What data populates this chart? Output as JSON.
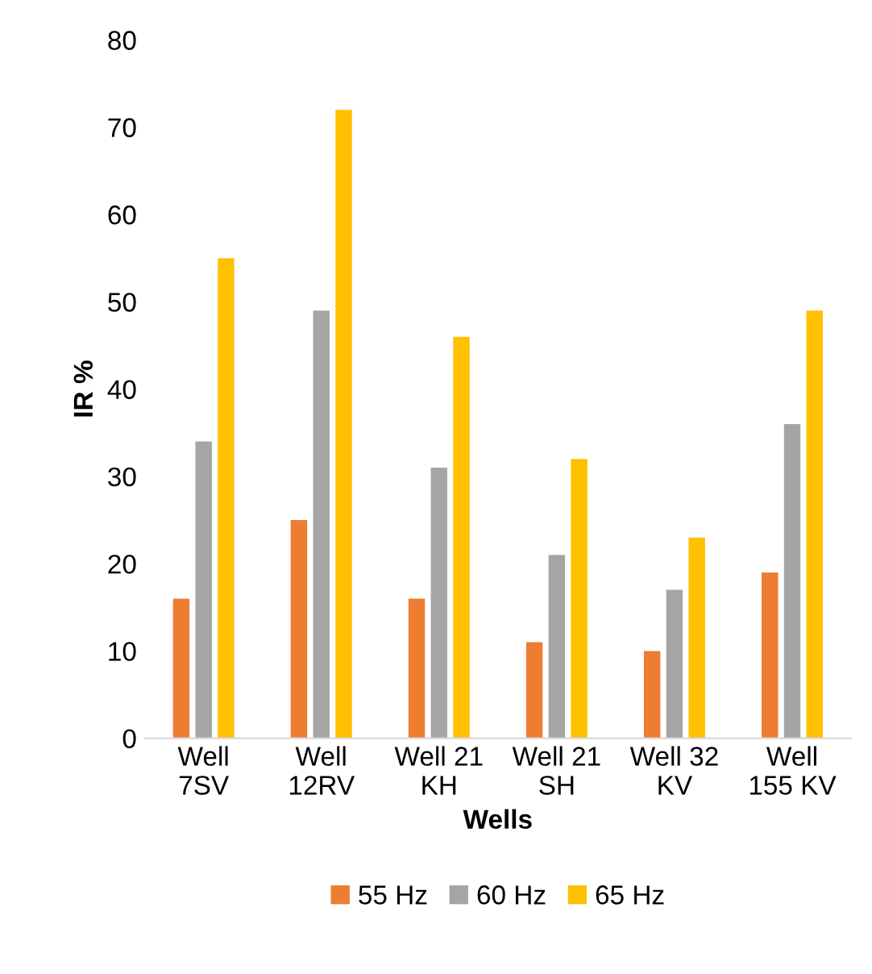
{
  "chart_data": {
    "type": "bar",
    "xlabel": "Wells",
    "ylabel": "IR %",
    "categories": [
      "Well\n7SV",
      "Well\n12RV",
      "Well 21\nKH",
      "Well 21\nSH",
      "Well 32\nKV",
      "Well\n155 KV"
    ],
    "series": [
      {
        "name": "55 Hz",
        "color": "#ed7d31",
        "values": [
          16,
          25,
          16,
          11,
          10,
          19
        ]
      },
      {
        "name": "60 Hz",
        "color": "#a5a5a5",
        "values": [
          34,
          49,
          31,
          21,
          17,
          36
        ]
      },
      {
        "name": "65 Hz",
        "color": "#ffc000",
        "values": [
          55,
          72,
          46,
          32,
          23,
          49
        ]
      }
    ],
    "ylim": [
      0,
      80
    ],
    "yticks": [
      0,
      10,
      20,
      30,
      40,
      50,
      60,
      70,
      80
    ],
    "grid": false,
    "legend": "bottom"
  }
}
